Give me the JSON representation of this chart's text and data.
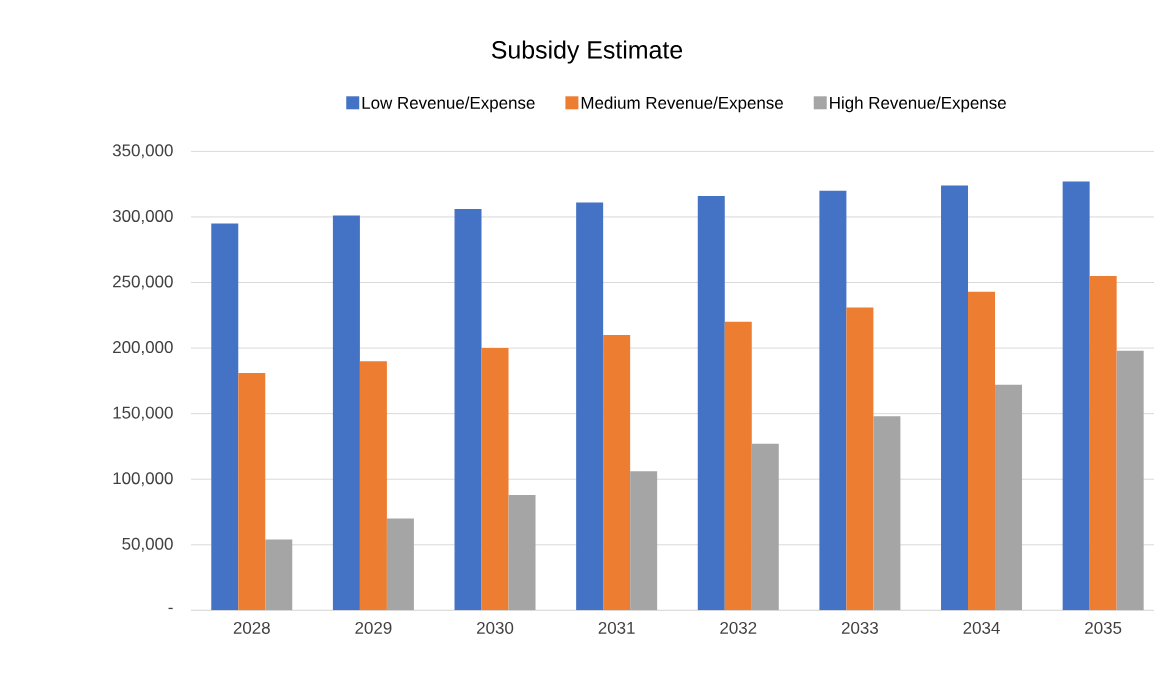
{
  "chart_data": {
    "type": "bar",
    "title": "Subsidy Estimate",
    "categories": [
      "2028",
      "2029",
      "2030",
      "2031",
      "2032",
      "2033",
      "2034",
      "2035"
    ],
    "series": [
      {
        "name": "Low Revenue/Expense",
        "color": "#4472c4",
        "values": [
          295000,
          301000,
          306000,
          311000,
          316000,
          320000,
          324000,
          327000
        ]
      },
      {
        "name": "Medium Revenue/Expense",
        "color": "#ed7d31",
        "values": [
          181000,
          190000,
          200000,
          210000,
          220000,
          231000,
          243000,
          255000
        ]
      },
      {
        "name": "High Revenue/Expense",
        "color": "#a5a5a5",
        "values": [
          54000,
          70000,
          88000,
          106000,
          127000,
          148000,
          172000,
          198000
        ]
      }
    ],
    "ylim": [
      0,
      350000
    ],
    "yticks": [
      {
        "value": 0,
        "label": "-"
      },
      {
        "value": 50000,
        "label": "50,000"
      },
      {
        "value": 100000,
        "label": "100,000"
      },
      {
        "value": 150000,
        "label": "150,000"
      },
      {
        "value": 200000,
        "label": "200,000"
      },
      {
        "value": 250000,
        "label": "250,000"
      },
      {
        "value": 300000,
        "label": "300,000"
      },
      {
        "value": 350000,
        "label": "350,000"
      }
    ],
    "grid": "y",
    "legend": "top"
  }
}
